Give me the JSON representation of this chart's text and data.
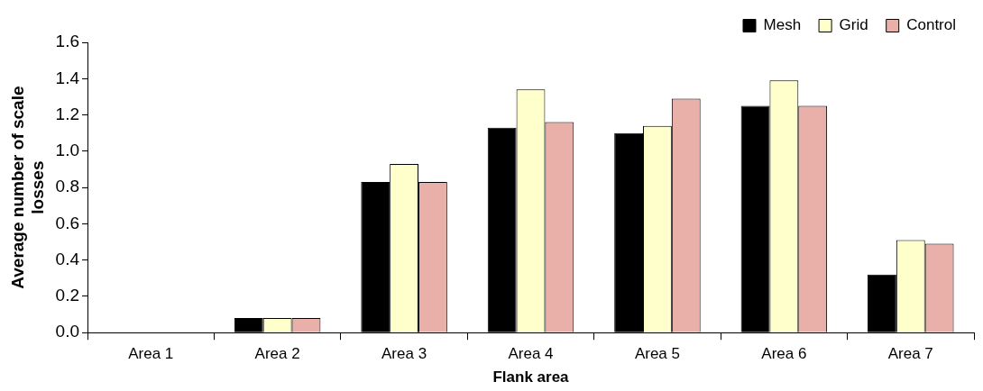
{
  "chart_data": {
    "type": "bar",
    "xlabel": "Flank area",
    "ylabel": "Average number of scale losses",
    "categories": [
      "Area 1",
      "Area 2",
      "Area 3",
      "Area 4",
      "Area 5",
      "Area 6",
      "Area 7"
    ],
    "series": [
      {
        "name": "Mesh",
        "color": "#000000",
        "values": [
          0,
          0.08,
          0.83,
          1.13,
          1.1,
          1.25,
          0.32
        ]
      },
      {
        "name": "Grid",
        "color": "#ffffcc",
        "values": [
          0,
          0.08,
          0.93,
          1.34,
          1.14,
          1.39,
          0.51
        ]
      },
      {
        "name": "Control",
        "color": "#e8b0a8",
        "values": [
          0,
          0.08,
          0.83,
          1.16,
          1.29,
          1.25,
          0.49
        ]
      }
    ],
    "ylim": [
      0,
      1.6
    ],
    "yticks": [
      {
        "value": 0,
        "label": "0.0"
      },
      0.2,
      0.4,
      0.6,
      0.8,
      {
        "value": 1,
        "label": "1.0"
      },
      1.2,
      1.4,
      1.6
    ],
    "grid": false,
    "legend": "top right"
  }
}
